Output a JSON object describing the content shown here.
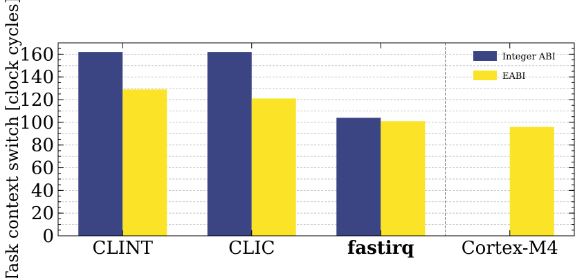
{
  "chart_data": {
    "type": "bar",
    "title": "",
    "xlabel": "",
    "ylabel": "Task context switch [clock cycles]",
    "ylim": [
      0,
      170
    ],
    "yticks": [
      0,
      20,
      40,
      60,
      80,
      100,
      120,
      140,
      160
    ],
    "categories": [
      "CLINT",
      "CLIC",
      "fastirq",
      "Cortex-M4"
    ],
    "bold_categories": [
      "fastirq"
    ],
    "series": [
      {
        "name": "Integer ABI",
        "color": "#3b4584",
        "values": [
          162,
          162,
          104,
          null
        ]
      },
      {
        "name": "EABI",
        "color": "#fbe327",
        "values": [
          129,
          121,
          101,
          96
        ]
      }
    ],
    "grid": "horizontal dashed",
    "separator": "vertical dashed line between fastirq and Cortex-M4",
    "legend_position": "top-right"
  }
}
